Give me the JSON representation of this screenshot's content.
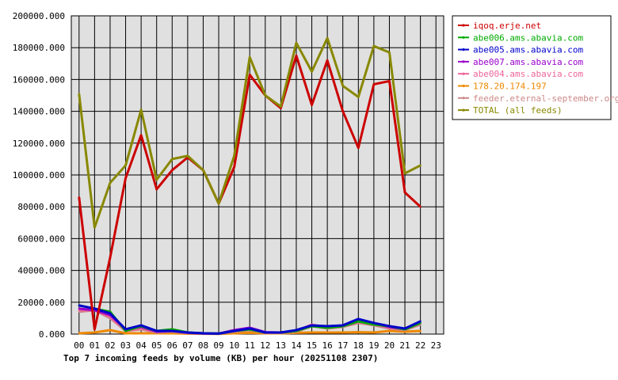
{
  "chart_data": {
    "type": "line",
    "title": "Top 7 incoming feeds by volume (KB) per hour (20251108 2307)",
    "ylim": [
      0,
      200000
    ],
    "y_ticks": [
      "0.000",
      "20000.000",
      "40000.000",
      "60000.000",
      "80000.000",
      "100000.000",
      "120000.000",
      "140000.000",
      "160000.000",
      "180000.000",
      "200000.000"
    ],
    "x_ticks": [
      "00",
      "01",
      "02",
      "03",
      "04",
      "05",
      "06",
      "07",
      "08",
      "09",
      "10",
      "11",
      "12",
      "13",
      "14",
      "15",
      "16",
      "17",
      "18",
      "19",
      "20",
      "21",
      "22",
      "23"
    ],
    "grid": true,
    "legend_position": "right",
    "series": [
      {
        "name": "iqoq.erje.net",
        "color": "#cc0000",
        "values": [
          86000,
          3000,
          48000,
          98000,
          125000,
          91000,
          103000,
          111000,
          103000,
          82000,
          105000,
          163000,
          150000,
          142000,
          175000,
          144000,
          172000,
          140000,
          117000,
          157000,
          159000,
          89000,
          80000
        ]
      },
      {
        "name": "abe006.ams.abavia.com",
        "color": "#00aa00",
        "values": [
          18000,
          16000,
          14000,
          2000,
          5000,
          2000,
          3000,
          1000,
          500,
          300,
          2000,
          3000,
          1000,
          1000,
          2000,
          5000,
          4000,
          5000,
          8000,
          6000,
          5000,
          3000,
          7000
        ]
      },
      {
        "name": "abe005.ams.abavia.com",
        "color": "#0000cc",
        "values": [
          18000,
          16000,
          13000,
          3000,
          5500,
          2000,
          2000,
          1000,
          500,
          300,
          2000,
          3500,
          1000,
          1000,
          2500,
          5500,
          5000,
          5500,
          9500,
          7000,
          5000,
          3500,
          8000
        ]
      },
      {
        "name": "abe007.ams.abavia.com",
        "color": "#9900cc",
        "values": [
          16000,
          15000,
          12000,
          3000,
          4500,
          1500,
          2000,
          800,
          400,
          300,
          2500,
          4000,
          1200,
          1000,
          2000,
          5000,
          4500,
          5000,
          8000,
          6500,
          4500,
          3000,
          7000
        ]
      },
      {
        "name": "abe004.ams.abavia.com",
        "color": "#ee6699",
        "values": [
          15000,
          15000,
          11000,
          2000,
          3500,
          1500,
          2000,
          800,
          400,
          300,
          2000,
          3000,
          1000,
          1000,
          2000,
          6000,
          4000,
          5000,
          7500,
          6000,
          4000,
          3000,
          6500
        ]
      },
      {
        "name": "178.20.174.197",
        "color": "#ee8800",
        "values": [
          500,
          1000,
          2500,
          500,
          500,
          500,
          500,
          300,
          200,
          100,
          500,
          800,
          500,
          500,
          800,
          1000,
          1000,
          1000,
          1200,
          1000,
          2000,
          1500,
          2000
        ]
      },
      {
        "name": "feeder.eternal-september.org",
        "color": "#cc8888",
        "values": [
          14000,
          15000,
          10000,
          2000,
          3000,
          1000,
          1500,
          600,
          300,
          200,
          1500,
          2500,
          800,
          800,
          1500,
          5000,
          3500,
          4500,
          7000,
          5500,
          3500,
          2500,
          6000
        ]
      },
      {
        "name": "TOTAL (all feeds)",
        "color": "#888800",
        "values": [
          151000,
          67000,
          95000,
          106000,
          141000,
          97000,
          110000,
          112000,
          103000,
          82000,
          112000,
          174000,
          150000,
          143000,
          183000,
          165000,
          186000,
          156000,
          149000,
          181000,
          177000,
          101000,
          106000
        ]
      }
    ]
  }
}
